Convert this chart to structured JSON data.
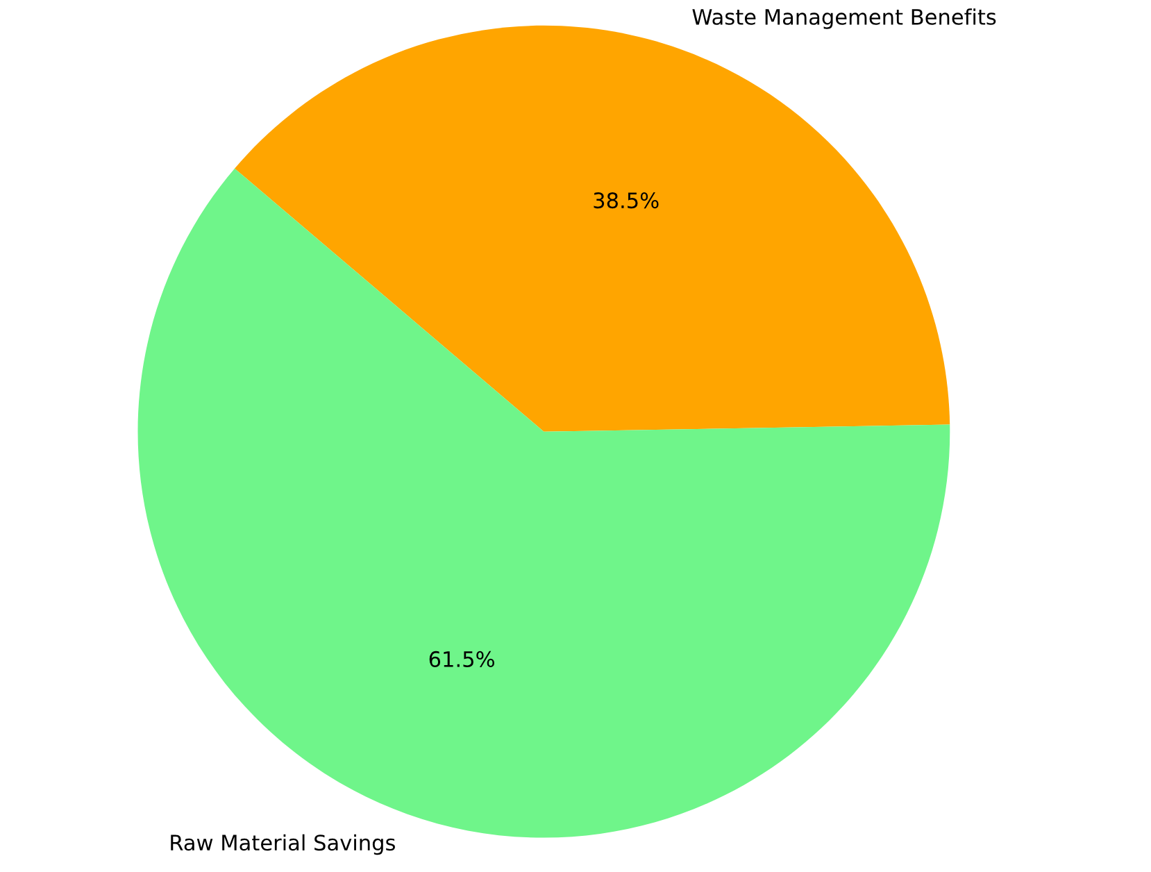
{
  "chart_data": {
    "type": "pie",
    "categories": [
      "Waste Management Benefits",
      "Raw Material Savings"
    ],
    "values": [
      38.5,
      61.5
    ],
    "colors": [
      "#ffa500",
      "#6ff58a"
    ],
    "value_labels": [
      "38.5%",
      "61.5%"
    ]
  }
}
